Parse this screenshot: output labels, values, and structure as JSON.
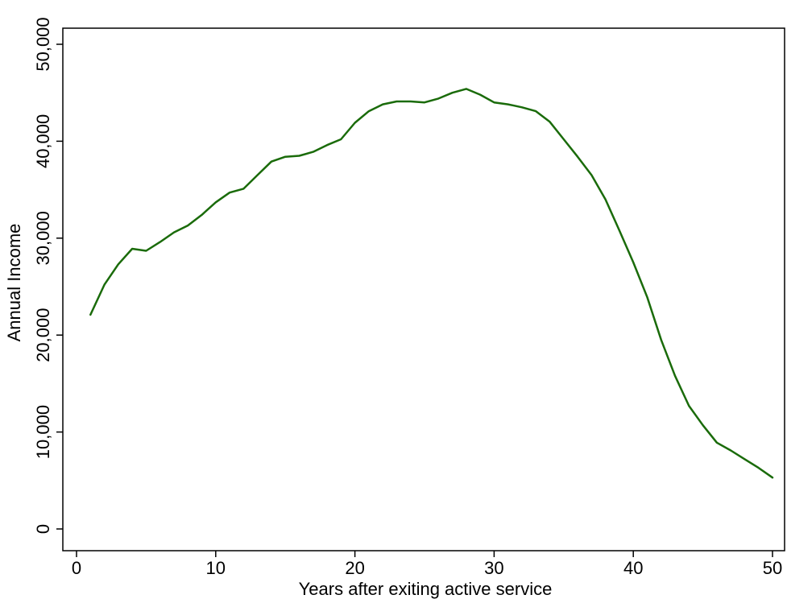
{
  "chart_data": {
    "type": "line",
    "title": "",
    "xlabel": "Years after exiting active service",
    "ylabel": "Annual Income",
    "xlim": [
      0,
      50
    ],
    "ylim": [
      0,
      50000
    ],
    "xticks": [
      0,
      10,
      20,
      30,
      40,
      50
    ],
    "xtick_labels": [
      "0",
      "10",
      "20",
      "30",
      "40",
      "50"
    ],
    "yticks": [
      0,
      10000,
      20000,
      30000,
      40000,
      50000
    ],
    "ytick_labels": [
      "0",
      "10,000",
      "20,000",
      "30,000",
      "40,000",
      "50,000"
    ],
    "grid": false,
    "line_color": "#1a6b0a",
    "series": [
      {
        "x": [
          1,
          2,
          3,
          4,
          5,
          6,
          7,
          8,
          9,
          10,
          11,
          12,
          13,
          14,
          15,
          16,
          17,
          18,
          19,
          20,
          21,
          22,
          23,
          24,
          25,
          26,
          27,
          28,
          29,
          30,
          31,
          32,
          33,
          34,
          35,
          36,
          37,
          38,
          39,
          40,
          41,
          42,
          43,
          44,
          45,
          46,
          47,
          48,
          49,
          50
        ],
        "values": [
          22100,
          25200,
          27300,
          28900,
          28700,
          29600,
          30600,
          31300,
          32400,
          33700,
          34700,
          35100,
          36500,
          37900,
          38400,
          38500,
          38900,
          39600,
          40200,
          41900,
          43100,
          43800,
          44100,
          44100,
          44000,
          44400,
          45000,
          45400,
          44800,
          44000,
          43800,
          43500,
          43100,
          42000,
          40200,
          38400,
          36500,
          34000,
          30800,
          27500,
          23900,
          19500,
          15800,
          12700,
          10700,
          8900,
          8100,
          7200,
          6300,
          5300
        ]
      }
    ]
  }
}
